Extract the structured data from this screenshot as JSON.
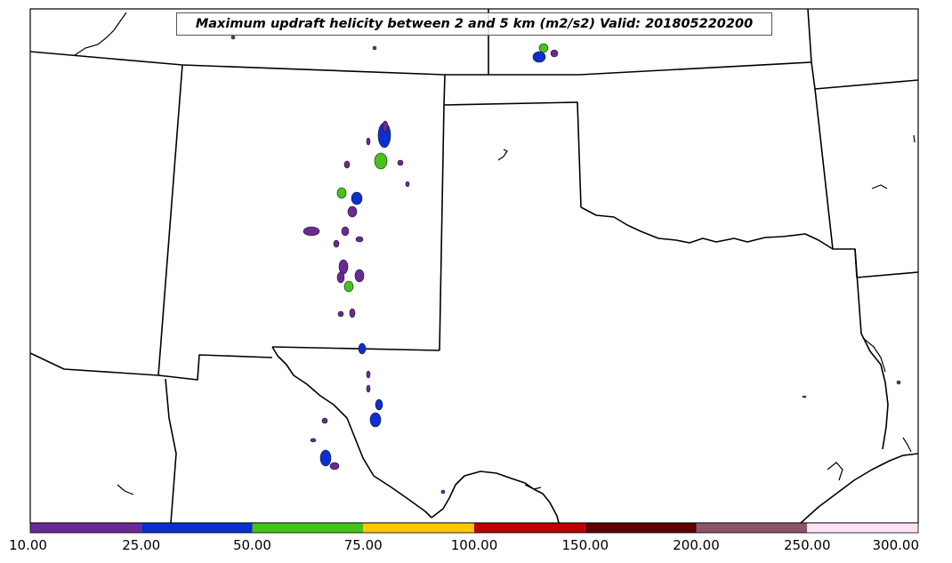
{
  "map": {
    "title": "Maximum updraft helicity between 2 and 5 km (m2/s2) Valid: 201805220200",
    "variable": "Maximum updraft helicity between 2 and 5 km",
    "units": "m2/s2",
    "valid_time": "201805220200"
  },
  "colorbar": {
    "levels": [
      "10.00",
      "25.00",
      "50.00",
      "75.00",
      "100.00",
      "150.00",
      "200.00",
      "250.00",
      "300.00"
    ],
    "colors": [
      "#6a2a93",
      "#0b2fd1",
      "#44c41a",
      "#ffc800",
      "#bb0000",
      "#5e0000",
      "#8c5668",
      "#ffe4f8"
    ]
  },
  "colors": {
    "outline": "#000000",
    "background": "#ffffff"
  }
}
